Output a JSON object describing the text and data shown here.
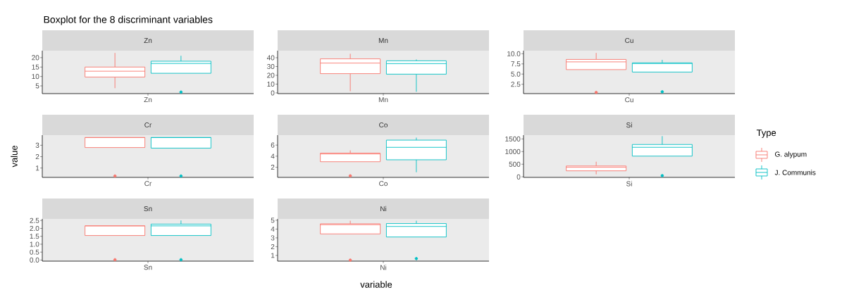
{
  "chart_data": [
    {
      "type": "box",
      "title": "Boxplot for the 8 discriminant variables",
      "subtitle": "Zn",
      "categories": [
        "Zn"
      ],
      "ylim": [
        0.9,
        23.7
      ],
      "yticks": [
        5,
        10,
        15,
        20
      ],
      "series": [
        {
          "color": "#f8766d",
          "boxes": [
            {
              "low": 3.8,
              "q1": 9.7,
              "median": 12.8,
              "q3": 15,
              "high": 22.5
            }
          ]
        },
        {
          "color": "#00bfc4",
          "boxes": [
            {
              "low": 11.7,
              "q1": 11.7,
              "median": 16.9,
              "q3": 18.1,
              "high": 21,
              "outliers": [
                1.7
              ]
            }
          ]
        }
      ]
    },
    {
      "type": "box",
      "subtitle": "Mn",
      "categories": [
        "Mn"
      ],
      "ylim": [
        -0.8,
        48
      ],
      "yticks": [
        0,
        10,
        20,
        30,
        40
      ],
      "series": [
        {
          "color": "#f8766d",
          "boxes": [
            {
              "low": 1.9,
              "q1": 21.9,
              "median": 33.9,
              "q3": 38.7,
              "high": 44.5
            }
          ]
        },
        {
          "color": "#00bfc4",
          "boxes": [
            {
              "low": 1.3,
              "q1": 21.3,
              "median": 33.3,
              "q3": 36.5,
              "high": 38
            }
          ]
        }
      ]
    },
    {
      "type": "box",
      "subtitle": "Cu",
      "categories": [
        "Cu"
      ],
      "ylim": [
        0.2,
        10.75
      ],
      "yticks": [
        {
          "value": 2.5,
          "label": "2.5"
        },
        {
          "value": 5,
          "label": "5.0"
        },
        {
          "value": 7.5,
          "label": "7.5"
        },
        {
          "value": 10,
          "label": "10.0"
        }
      ],
      "series": [
        {
          "color": "#f8766d",
          "boxes": [
            {
              "low": 6.1,
              "q1": 6.1,
              "median": 8.0,
              "q3": 8.6,
              "high": 10.2,
              "outliers": [
                0.5
              ]
            }
          ]
        },
        {
          "color": "#00bfc4",
          "boxes": [
            {
              "low": 5.5,
              "q1": 5.5,
              "median": 7.6,
              "q3": 7.75,
              "high": 8.5,
              "outliers": [
                0.65
              ]
            }
          ]
        }
      ]
    },
    {
      "type": "box",
      "subtitle": "Cr",
      "ylabel": "value",
      "categories": [
        "Cr"
      ],
      "ylim": [
        0.18,
        3.89
      ],
      "yticks": [
        1,
        2,
        3
      ],
      "series": [
        {
          "color": "#f8766d",
          "boxes": [
            {
              "low": 2.8,
              "q1": 2.8,
              "median": 3.68,
              "q3": 3.68,
              "high": 3.68,
              "outliers": [
                0.3
              ]
            }
          ]
        },
        {
          "color": "#00bfc4",
          "boxes": [
            {
              "low": 2.75,
              "q1": 2.75,
              "median": 3.68,
              "q3": 3.68,
              "high": 3.68,
              "outliers": [
                0.3
              ]
            }
          ]
        }
      ]
    },
    {
      "type": "box",
      "subtitle": "Co",
      "categories": [
        "Co"
      ],
      "ylim": [
        0.17,
        7.8
      ],
      "yticks": [
        2,
        4,
        6
      ],
      "series": [
        {
          "color": "#f8766d",
          "boxes": [
            {
              "low": 3.0,
              "q1": 3.0,
              "median": 4.4,
              "q3": 4.55,
              "high": 5.05,
              "outliers": [
                0.45
              ]
            }
          ]
        },
        {
          "color": "#00bfc4",
          "boxes": [
            {
              "low": 1.1,
              "q1": 3.35,
              "median": 5.6,
              "q3": 6.9,
              "high": 7.35
            }
          ]
        }
      ]
    },
    {
      "type": "box",
      "subtitle": "Si",
      "legend": "right",
      "legend_title": "Type",
      "categories": [
        "Si"
      ],
      "ylim": [
        -20,
        1650
      ],
      "yticks": [
        0,
        500,
        1000,
        1500
      ],
      "series": [
        {
          "name": "G. alypum",
          "color": "#f8766d",
          "boxes": [
            {
              "low": 100,
              "q1": 240,
              "median": 380,
              "q3": 430,
              "high": 600
            }
          ]
        },
        {
          "name": "J. Communis",
          "color": "#00bfc4",
          "boxes": [
            {
              "low": 820,
              "q1": 820,
              "median": 1170,
              "q3": 1280,
              "high": 1610,
              "outliers": [
                50
              ]
            }
          ]
        }
      ]
    },
    {
      "type": "box",
      "subtitle": "Sn",
      "categories": [
        "Sn"
      ],
      "ylim": [
        -0.07,
        2.6
      ],
      "yticks": [
        {
          "value": 0,
          "label": "0.0"
        },
        {
          "value": 0.5,
          "label": "0.5"
        },
        {
          "value": 1,
          "label": "1.0"
        },
        {
          "value": 1.5,
          "label": "1.5"
        },
        {
          "value": 2,
          "label": "2.0"
        },
        {
          "value": 2.5,
          "label": "2.5"
        }
      ],
      "series": [
        {
          "color": "#f8766d",
          "boxes": [
            {
              "low": 1.55,
              "q1": 1.55,
              "median": 2.16,
              "q3": 2.16,
              "high": 2.16,
              "outliers": [
                0.02
              ]
            }
          ]
        },
        {
          "color": "#00bfc4",
          "boxes": [
            {
              "low": 1.55,
              "q1": 1.55,
              "median": 2.16,
              "q3": 2.27,
              "high": 2.5,
              "outliers": [
                0.02
              ]
            }
          ]
        }
      ]
    },
    {
      "type": "box",
      "subtitle": "Ni",
      "xlabel": "variable",
      "categories": [
        "Ni"
      ],
      "ylim": [
        0.35,
        5.16
      ],
      "yticks": [
        1,
        2,
        3,
        4,
        5
      ],
      "series": [
        {
          "color": "#f8766d",
          "boxes": [
            {
              "low": 3.45,
              "q1": 3.45,
              "median": 4.5,
              "q3": 4.6,
              "high": 4.95,
              "outliers": [
                0.47
              ]
            }
          ]
        },
        {
          "color": "#00bfc4",
          "boxes": [
            {
              "low": 3.1,
              "q1": 3.1,
              "median": 4.3,
              "q3": 4.63,
              "high": 4.95,
              "outliers": [
                0.64
              ]
            }
          ]
        }
      ]
    }
  ]
}
